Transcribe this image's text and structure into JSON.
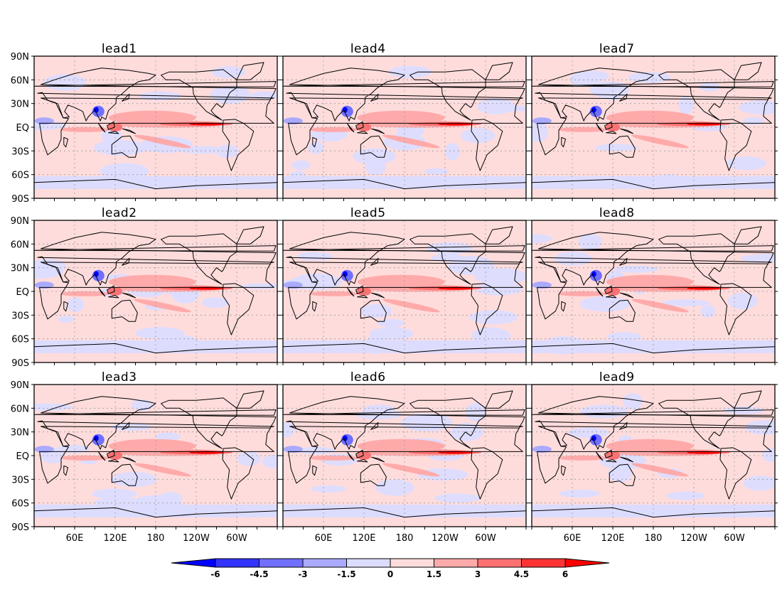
{
  "chart_data": {
    "type": "heatmap",
    "layout": "3x3 panel grid of global maps",
    "panels": [
      {
        "title": "lead1"
      },
      {
        "title": "lead4"
      },
      {
        "title": "lead7"
      },
      {
        "title": "lead2"
      },
      {
        "title": "lead5"
      },
      {
        "title": "lead8"
      },
      {
        "title": "lead3"
      },
      {
        "title": "lead6"
      },
      {
        "title": "lead9"
      }
    ],
    "lat_ticks": [
      "90N",
      "60N",
      "30N",
      "EQ",
      "30S",
      "60S",
      "90S"
    ],
    "lon_ticks": [
      "60E",
      "120E",
      "180",
      "120W",
      "60W"
    ],
    "lon_range": [
      0,
      360
    ],
    "lat_range": [
      -90,
      90
    ],
    "grid": "dotted",
    "colorbar": {
      "ticks": [
        "-6",
        "-4.5",
        "-3",
        "-1.5",
        "0",
        "1.5",
        "3",
        "4.5",
        "6"
      ],
      "levels": [
        -6,
        -4.5,
        -3,
        -1.5,
        0,
        1.5,
        3,
        4.5,
        6
      ],
      "colors": [
        "#0000ff",
        "#3333ff",
        "#7070ff",
        "#aaaaff",
        "#dcdcff",
        "#ffdcdc",
        "#ffaaaa",
        "#ff7070",
        "#ff3333",
        "#ff0000"
      ],
      "extend": "both"
    }
  }
}
